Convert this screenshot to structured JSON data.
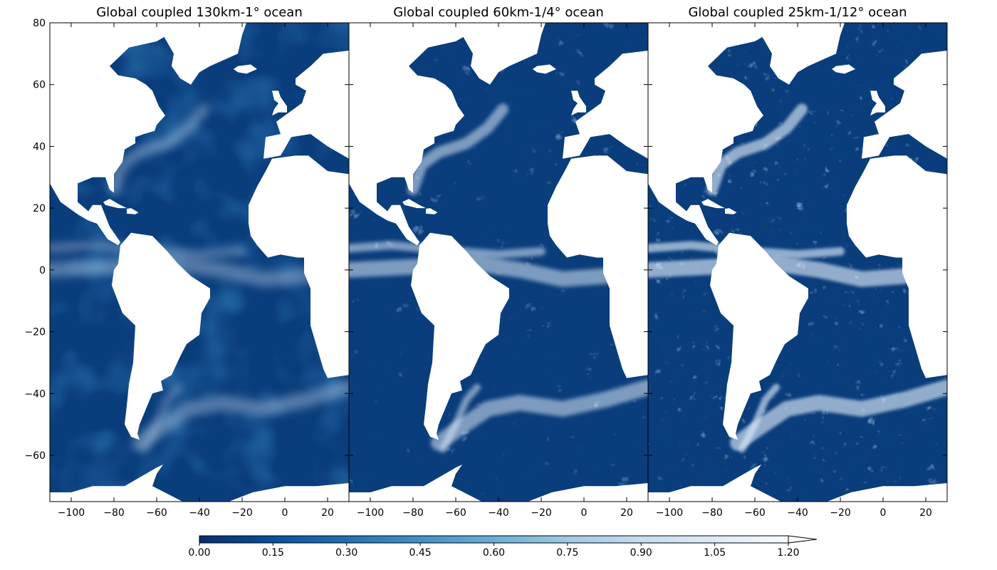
{
  "panels": [
    {
      "title": "Global coupled 130km-1° ocean",
      "resolution": "coarse"
    },
    {
      "title": "Global coupled 60km-1/4° ocean",
      "resolution": "medium"
    },
    {
      "title": "Global coupled 25km-1/12° ocean",
      "resolution": "fine"
    }
  ],
  "axes": {
    "lon_range": [
      -110,
      30
    ],
    "lat_range": [
      -75,
      80
    ],
    "lon_ticks": [
      "−100",
      "−80",
      "−60",
      "−40",
      "−20",
      "0",
      "20"
    ],
    "lon_tick_values": [
      -100,
      -80,
      -60,
      -40,
      -20,
      0,
      20
    ],
    "lat_ticks": [
      "80",
      "60",
      "40",
      "20",
      "0",
      "−20",
      "−40",
      "−60"
    ],
    "lat_tick_values": [
      80,
      60,
      40,
      20,
      0,
      -20,
      -40,
      -60
    ]
  },
  "colorbar": {
    "range": [
      0.0,
      1.2
    ],
    "extend": "max",
    "tick_labels": [
      "0.00",
      "0.15",
      "0.30",
      "0.45",
      "0.60",
      "0.75",
      "0.90",
      "1.05",
      "1.20"
    ],
    "colors": [
      "#08306b",
      "#08519c",
      "#2171b5",
      "#4292c6",
      "#6baed6",
      "#9ecae1",
      "#c6dbef",
      "#deebf7",
      "#f7fbff"
    ]
  },
  "land_color": "#ffffff",
  "ocean_base_color": "#0a3d7c"
}
